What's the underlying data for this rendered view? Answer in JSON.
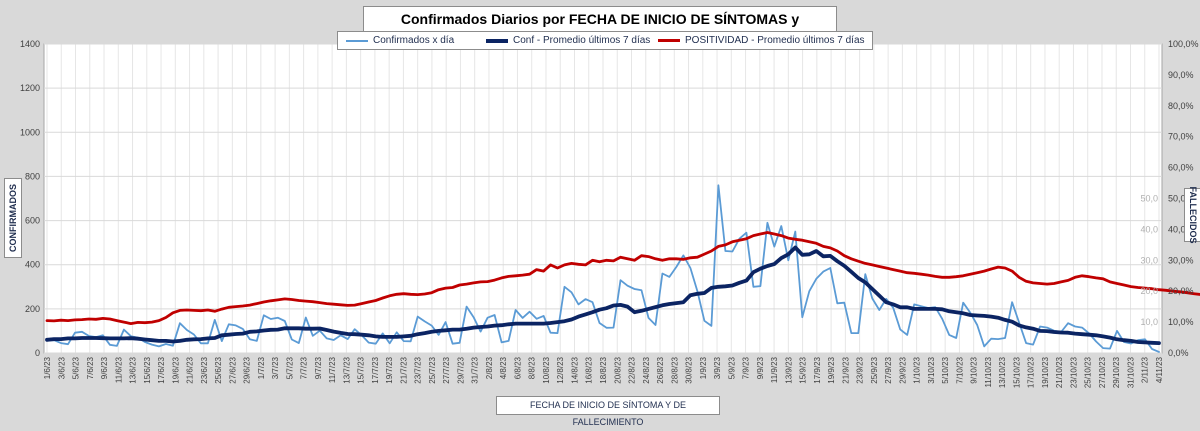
{
  "chart_data": {
    "type": "line",
    "title": "Confirmados  Diarios  por FECHA DE INICIO DE SÍNTOMAS y POSITIVIDAD",
    "xlabel": "FECHA DE INICIO DE SÍNTOMA  Y DE FALLECIMIENTO",
    "ylabel_left": "CONFIRMADOS",
    "ylabel_right": "FALLECIDOS",
    "ylim_left": [
      0,
      1400
    ],
    "ylim_right": [
      0,
      100
    ],
    "left_ticks": [
      "0",
      "200",
      "400",
      "600",
      "800",
      "1000",
      "1200",
      "1400"
    ],
    "right_ticks": [
      "0,0%",
      "10,0%",
      "20,0%",
      "30,0%",
      "40,0%",
      "50,0%",
      "60,0%",
      "70,0%",
      "80,0%",
      "90,0%",
      "100,0%"
    ],
    "right_inner_ticks": [
      "10,0",
      "20,0",
      "30,0",
      "40,0",
      "50,0"
    ],
    "x_labels": [
      "1/6/23",
      "3/6/23",
      "5/6/23",
      "7/6/23",
      "9/6/23",
      "11/6/23",
      "13/6/23",
      "15/6/23",
      "17/6/23",
      "19/6/23",
      "21/6/23",
      "23/6/23",
      "25/6/23",
      "27/6/23",
      "29/6/23",
      "1/7/23",
      "3/7/23",
      "5/7/23",
      "7/7/23",
      "9/7/23",
      "11/7/23",
      "13/7/23",
      "15/7/23",
      "17/7/23",
      "19/7/23",
      "21/7/23",
      "23/7/23",
      "25/7/23",
      "27/7/23",
      "29/7/23",
      "31/7/23",
      "2/8/23",
      "4/8/23",
      "6/8/23",
      "8/8/23",
      "10/8/23",
      "12/8/23",
      "14/8/23",
      "16/8/23",
      "18/8/23",
      "20/8/23",
      "22/8/23",
      "24/8/23",
      "26/8/23",
      "28/8/23",
      "30/8/23",
      "1/9/23",
      "3/9/23",
      "5/9/23",
      "7/9/23",
      "9/9/23",
      "11/9/23",
      "13/9/23",
      "15/9/23",
      "17/9/23",
      "19/9/23",
      "21/9/23",
      "23/9/23",
      "25/9/23",
      "27/9/23",
      "29/9/23",
      "1/10/23",
      "3/10/23",
      "5/10/23",
      "7/10/23",
      "9/10/23",
      "11/10/23",
      "13/10/23",
      "15/10/23",
      "17/10/23",
      "19/10/23",
      "21/10/23",
      "23/10/23",
      "25/10/23",
      "27/10/23",
      "29/10/23",
      "31/10/23",
      "2/11/23",
      "4/11/23"
    ],
    "series": [
      {
        "name": "Confirmados x día",
        "axis": "left",
        "color": "#5b9bd5",
        "values": [
          56,
          58,
          45,
          40,
          92,
          96,
          77,
          72,
          80,
          37,
          32,
          106,
          76,
          70,
          50,
          38,
          30,
          41,
          33,
          135,
          104,
          84,
          44,
          44,
          150,
          54,
          130,
          125,
          109,
          62,
          55,
          171,
          154,
          160,
          145,
          61,
          45,
          161,
          78,
          101,
          66,
          59,
          80,
          63,
          108,
          80,
          47,
          42,
          89,
          44,
          94,
          54,
          53,
          165,
          143,
          124,
          82,
          140,
          42,
          46,
          210,
          162,
          97,
          160,
          172,
          48,
          55,
          195,
          159,
          187,
          155,
          168,
          92,
          90,
          300,
          275,
          220,
          244,
          230,
          136,
          114,
          115,
          330,
          305,
          290,
          284,
          159,
          127,
          360,
          345,
          390,
          442,
          385,
          280,
          146,
          123,
          760,
          462,
          460,
          518,
          545,
          300,
          303,
          590,
          482,
          575,
          420,
          550,
          162,
          280,
          336,
          369,
          385,
          225,
          228,
          90,
          90,
          357,
          247,
          195,
          245,
          205,
          107,
          82,
          220,
          212,
          204,
          208,
          155,
          82,
          68,
          228,
          183,
          127,
          30,
          65,
          63,
          68,
          230,
          138,
          45,
          38,
          120,
          115,
          101,
          95,
          135,
          120,
          115,
          89,
          52,
          22,
          20,
          100,
          50,
          43,
          58,
          62,
          18,
          5
        ]
      },
      {
        "name": "Conf - Promedio últimos 7 días",
        "axis": "left",
        "color": "#0b2463",
        "values": [
          60,
          63,
          63,
          66,
          66,
          68,
          68,
          68,
          67,
          66,
          66,
          66,
          67,
          65,
          61,
          58,
          55,
          55,
          52,
          55,
          60,
          62,
          63,
          66,
          68,
          80,
          83,
          86,
          88,
          96,
          98,
          102,
          105,
          106,
          112,
          112,
          112,
          110,
          110,
          111,
          104,
          97,
          91,
          86,
          85,
          83,
          80,
          75,
          73,
          73,
          73,
          75,
          78,
          85,
          90,
          96,
          100,
          103,
          106,
          106,
          110,
          115,
          118,
          120,
          124,
          126,
          130,
          133,
          133,
          133,
          133,
          133,
          136,
          140,
          144,
          152,
          165,
          175,
          185,
          196,
          203,
          215,
          218,
          210,
          185,
          191,
          200,
          208,
          216,
          222,
          226,
          230,
          262,
          268,
          272,
          295,
          300,
          302,
          306,
          318,
          328,
          366,
          382,
          394,
          403,
          430,
          447,
          478,
          445,
          447,
          462,
          438,
          440,
          416,
          395,
          368,
          340,
          320,
          290,
          260,
          230,
          220,
          207,
          207,
          200,
          200,
          200,
          200,
          198,
          189,
          185,
          180,
          172,
          170,
          168,
          165,
          160,
          150,
          142,
          125,
          116,
          110,
          100,
          99,
          95,
          93,
          92,
          88,
          85,
          83,
          80,
          75,
          70,
          62,
          58,
          55,
          50,
          48,
          46,
          45
        ]
      },
      {
        "name": "POSITIVIDAD - Promedio últimos 7 días",
        "axis": "right",
        "color": "#c00000",
        "values": [
          10.5,
          10.4,
          10.6,
          10.5,
          10.7,
          10.8,
          11.0,
          10.9,
          11.2,
          11.0,
          10.5,
          10.0,
          9.5,
          9.9,
          9.8,
          10.0,
          10.5,
          11.5,
          13.0,
          13.8,
          13.9,
          13.8,
          13.7,
          13.9,
          13.5,
          14.2,
          14.8,
          15.0,
          15.2,
          15.5,
          16.0,
          16.5,
          16.9,
          17.2,
          17.5,
          17.3,
          17.0,
          16.8,
          16.6,
          16.3,
          16.0,
          15.8,
          15.6,
          15.4,
          15.5,
          16.0,
          16.5,
          17.0,
          17.8,
          18.5,
          19.0,
          19.2,
          19.0,
          18.9,
          19.1,
          19.5,
          20.5,
          21.0,
          21.2,
          22.0,
          22.3,
          22.7,
          23.0,
          23.1,
          23.6,
          24.3,
          24.8,
          25.0,
          25.2,
          25.5,
          27.0,
          26.5,
          28.5,
          27.5,
          28.5,
          29.0,
          28.7,
          28.5,
          30.0,
          29.5,
          30.0,
          29.8,
          31.0,
          30.5,
          30.0,
          31.5,
          31.2,
          30.5,
          30.0,
          30.5,
          30.5,
          30.3,
          30.8,
          31.0,
          32.0,
          33.0,
          34.5,
          35.0,
          36.0,
          36.5,
          37.0,
          38.0,
          38.5,
          39.0,
          38.5,
          38.0,
          37.2,
          36.8,
          36.5,
          36.0,
          35.5,
          34.5,
          34.0,
          33.0,
          31.5,
          30.5,
          29.7,
          29.0,
          28.5,
          28.0,
          27.5,
          27.0,
          26.5,
          26.0,
          25.8,
          25.5,
          25.2,
          24.8,
          24.5,
          24.5,
          24.7,
          25.0,
          25.5,
          26.0,
          26.5,
          27.2,
          27.8,
          27.5,
          26.5,
          24.5,
          23.2,
          22.7,
          22.5,
          22.3,
          22.5,
          23.0,
          23.5,
          24.5,
          25.0,
          24.7,
          24.3,
          24.0,
          23.0,
          22.5,
          22.0,
          21.5,
          21.2,
          21.0,
          20.8,
          20.5,
          20.3,
          20.0,
          19.8,
          19.5,
          19.2,
          18.9
        ]
      }
    ]
  }
}
